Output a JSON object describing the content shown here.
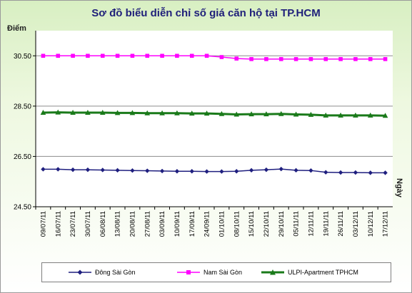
{
  "chart_data": {
    "type": "line",
    "title": "Sơ đồ biểu diễn chỉ số giá căn hộ tại TP.HCM",
    "ylabel": "Điểm",
    "xlabel": "Ngày",
    "ylim": [
      24.5,
      31.5
    ],
    "yticks": [
      "30.50",
      "28.50",
      "26.50",
      "24.50"
    ],
    "ytick_values": [
      30.5,
      28.5,
      26.5,
      24.5
    ],
    "grid": "horizontal",
    "legend_position": "bottom",
    "categories": [
      "09/07/11",
      "16/07/11",
      "23/07/11",
      "30/07/11",
      "06/08/11",
      "13/08/11",
      "20/08/11",
      "27/08/11",
      "03/09/11",
      "10/09/11",
      "17/09/11",
      "24/09/11",
      "01/10/11",
      "08/10/11",
      "15/10/11",
      "22/10/11",
      "29/10/11",
      "05/11/11",
      "12/11/11",
      "19/11/11",
      "26/11/11",
      "03/12/11",
      "10/12/11",
      "17/12/11"
    ],
    "series": [
      {
        "name": "Đông Sài Gòn",
        "color": "#1f1f7f",
        "marker": "diamond",
        "values": [
          25.99,
          25.99,
          25.97,
          25.97,
          25.96,
          25.95,
          25.94,
          25.93,
          25.92,
          25.91,
          25.91,
          25.9,
          25.9,
          25.91,
          25.95,
          25.97,
          26.0,
          25.95,
          25.94,
          25.87,
          25.86,
          25.86,
          25.85,
          25.85
        ]
      },
      {
        "name": "Nam Sài Gòn",
        "color": "#ff00ff",
        "marker": "square",
        "values": [
          30.5,
          30.5,
          30.5,
          30.5,
          30.5,
          30.5,
          30.5,
          30.5,
          30.5,
          30.5,
          30.5,
          30.5,
          30.45,
          30.39,
          30.37,
          30.37,
          30.37,
          30.37,
          30.37,
          30.37,
          30.37,
          30.37,
          30.37,
          30.37
        ]
      },
      {
        "name": "ULPI-Apartment TPHCM",
        "color": "#1a7a1a",
        "marker": "triangle",
        "values": [
          28.24,
          28.25,
          28.24,
          28.24,
          28.24,
          28.23,
          28.23,
          28.22,
          28.22,
          28.22,
          28.21,
          28.21,
          28.19,
          28.17,
          28.18,
          28.18,
          28.19,
          28.17,
          28.16,
          28.13,
          28.13,
          28.13,
          28.13,
          28.12
        ]
      }
    ]
  }
}
